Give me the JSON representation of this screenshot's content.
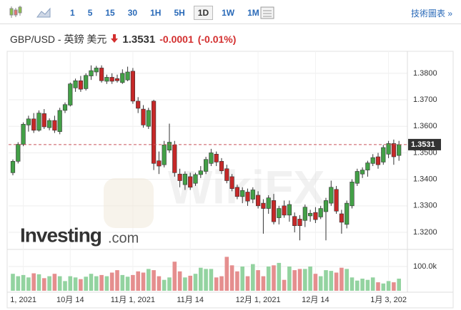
{
  "toolbar": {
    "intervals": [
      "1",
      "5",
      "15",
      "30",
      "1H",
      "5H",
      "1D",
      "1W",
      "1M"
    ],
    "selected": "1D",
    "link": "技術圖表 »"
  },
  "header": {
    "symbol": "GBP/USD - 英鎊 美元",
    "change": "-0.0001",
    "change_percent": "(-0.01%)"
  },
  "chart_data": {
    "type": "candlestick",
    "watermark": "WikiFX",
    "logo": "Investing",
    "logo_suffix": ".com",
    "categories": [
      null,
      null,
      "1, 2021",
      null,
      null,
      null,
      null,
      null,
      null,
      null,
      null,
      "10月 14",
      null,
      null,
      null,
      null,
      null,
      null,
      null,
      null,
      null,
      null,
      null,
      "11月 1, 2021",
      null,
      null,
      null,
      null,
      null,
      null,
      null,
      null,
      null,
      null,
      "11月 14",
      null,
      null,
      null,
      null,
      null,
      null,
      null,
      null,
      null,
      null,
      null,
      null,
      "12月 1, 2021",
      null,
      null,
      null,
      null,
      null,
      null,
      null,
      null,
      null,
      null,
      "12月 14",
      null,
      null,
      null,
      null,
      null,
      null,
      null,
      null,
      null,
      null,
      null,
      null,
      null,
      "1月 3, 202",
      null,
      null
    ],
    "open": [
      1.3425,
      1.3468,
      1.3532,
      1.3605,
      1.3628,
      1.3585,
      1.3648,
      1.3595,
      1.3622,
      1.358,
      1.366,
      1.368,
      1.3745,
      1.3772,
      1.3742,
      1.379,
      1.3805,
      1.382,
      1.377,
      1.3785,
      1.378,
      1.3765,
      1.3775,
      1.3808,
      1.3695,
      1.3665,
      1.36,
      1.3695,
      1.347,
      1.3455,
      1.351,
      1.353,
      1.342,
      1.338,
      1.341,
      1.3385,
      1.3418,
      1.343,
      1.346,
      1.3495,
      1.3468,
      1.344,
      1.341,
      1.337,
      1.3335,
      1.3352,
      1.3325,
      1.334,
      1.331,
      1.329,
      1.332,
      1.3255,
      1.33,
      1.3265,
      1.326,
      1.325,
      1.3245,
      1.3262,
      1.3275,
      1.3258,
      1.3278,
      1.331,
      1.3362,
      1.327,
      1.323,
      1.33,
      1.3385,
      1.342,
      1.3435,
      1.346,
      1.3485,
      1.3465,
      1.3495,
      1.3535,
      1.349
    ],
    "high": [
      1.3475,
      1.354,
      1.3615,
      1.364,
      1.365,
      1.366,
      1.3665,
      1.363,
      1.364,
      1.367,
      1.369,
      1.3765,
      1.378,
      1.379,
      1.38,
      1.383,
      1.3828,
      1.383,
      1.3795,
      1.38,
      1.3795,
      1.3815,
      1.3825,
      1.382,
      1.371,
      1.368,
      1.367,
      1.37,
      1.3505,
      1.3545,
      1.361,
      1.3545,
      1.344,
      1.343,
      1.3425,
      1.3425,
      1.345,
      1.3485,
      1.3515,
      1.3505,
      1.348,
      1.3455,
      1.342,
      1.338,
      1.337,
      1.3365,
      1.337,
      1.3355,
      1.3325,
      1.334,
      1.3345,
      1.33,
      1.332,
      1.332,
      1.3275,
      1.3265,
      1.3305,
      1.3285,
      1.3295,
      1.33,
      1.333,
      1.3395,
      1.3375,
      1.3285,
      1.332,
      1.34,
      1.344,
      1.3445,
      1.347,
      1.3495,
      1.35,
      1.353,
      1.3545,
      1.355,
      1.3545
    ],
    "low": [
      1.3415,
      1.346,
      1.3525,
      1.358,
      1.3575,
      1.358,
      1.359,
      1.3585,
      1.3575,
      1.357,
      1.365,
      1.3675,
      1.373,
      1.373,
      1.3735,
      1.3775,
      1.379,
      1.3765,
      1.376,
      1.376,
      1.3765,
      1.376,
      1.377,
      1.3685,
      1.365,
      1.3595,
      1.359,
      1.3435,
      1.342,
      1.3445,
      1.35,
      1.341,
      1.337,
      1.336,
      1.336,
      1.3375,
      1.3405,
      1.342,
      1.345,
      1.345,
      1.342,
      1.3385,
      1.3355,
      1.3325,
      1.331,
      1.33,
      1.331,
      1.329,
      1.3195,
      1.327,
      1.323,
      1.323,
      1.3255,
      1.324,
      1.32,
      1.317,
      1.322,
      1.324,
      1.3235,
      1.325,
      1.317,
      1.33,
      1.327,
      1.3195,
      1.3215,
      1.329,
      1.3375,
      1.3405,
      1.341,
      1.345,
      1.344,
      1.3455,
      1.348,
      1.3455,
      1.347
    ],
    "close": [
      1.3468,
      1.3532,
      1.3608,
      1.3628,
      1.3585,
      1.365,
      1.3598,
      1.3622,
      1.3585,
      1.366,
      1.3682,
      1.376,
      1.3772,
      1.374,
      1.3792,
      1.381,
      1.382,
      1.3772,
      1.3785,
      1.377,
      1.3772,
      1.38,
      1.3805,
      1.3695,
      1.3668,
      1.3605,
      1.366,
      1.346,
      1.345,
      1.353,
      1.354,
      1.3425,
      1.3395,
      1.342,
      1.337,
      1.3418,
      1.3432,
      1.3475,
      1.35,
      1.3465,
      1.3432,
      1.3395,
      1.3365,
      1.3335,
      1.3358,
      1.3318,
      1.336,
      1.33,
      1.329,
      1.333,
      1.324,
      1.329,
      1.3265,
      1.3305,
      1.3225,
      1.3225,
      1.3295,
      1.3272,
      1.3248,
      1.329,
      1.332,
      1.337,
      1.328,
      1.3238,
      1.331,
      1.339,
      1.343,
      1.3435,
      1.3462,
      1.3482,
      1.3455,
      1.352,
      1.3535,
      1.3485,
      1.3531
    ],
    "volume": [
      70000,
      60000,
      65000,
      55000,
      72000,
      68000,
      52000,
      60000,
      70000,
      60000,
      40000,
      60000,
      55000,
      48000,
      58000,
      70000,
      60000,
      65000,
      60000,
      75000,
      85000,
      65000,
      58000,
      65000,
      80000,
      75000,
      90000,
      85000,
      60000,
      45000,
      55000,
      120000,
      80000,
      55000,
      62000,
      70000,
      95000,
      90000,
      90000,
      55000,
      60000,
      140000,
      105000,
      80000,
      100000,
      60000,
      110000,
      85000,
      60000,
      100000,
      105000,
      115000,
      45000,
      100000,
      85000,
      90000,
      90000,
      100000,
      70000,
      60000,
      85000,
      82000,
      75000,
      95000,
      90000,
      55000,
      42000,
      50000,
      45000,
      55000,
      35000,
      30000,
      40000,
      35000,
      50000
    ],
    "ylim": [
      1.3149,
      1.3848
    ],
    "yticks": [
      {
        "value": 1.32,
        "label": "1.3200"
      },
      {
        "value": 1.33,
        "label": "1.3300"
      },
      {
        "value": 1.34,
        "label": "1.3400"
      },
      {
        "value": 1.35,
        "label": "1.3500"
      },
      {
        "value": 1.36,
        "label": "1.3600"
      },
      {
        "value": 1.37,
        "label": "1.3700"
      },
      {
        "value": 1.38,
        "label": "1.3800"
      }
    ],
    "volume_ylim": [
      0,
      150000
    ],
    "volume_yticks": [
      {
        "value": 100000,
        "label": "100.0k"
      }
    ],
    "last_price": 1.3531,
    "up_color": "#43a047",
    "down_color": "#c62828",
    "volume_up_color": "#93d3a0",
    "volume_down_color": "#e58e8e",
    "last_price_color": "#c9545a",
    "grid": true
  }
}
